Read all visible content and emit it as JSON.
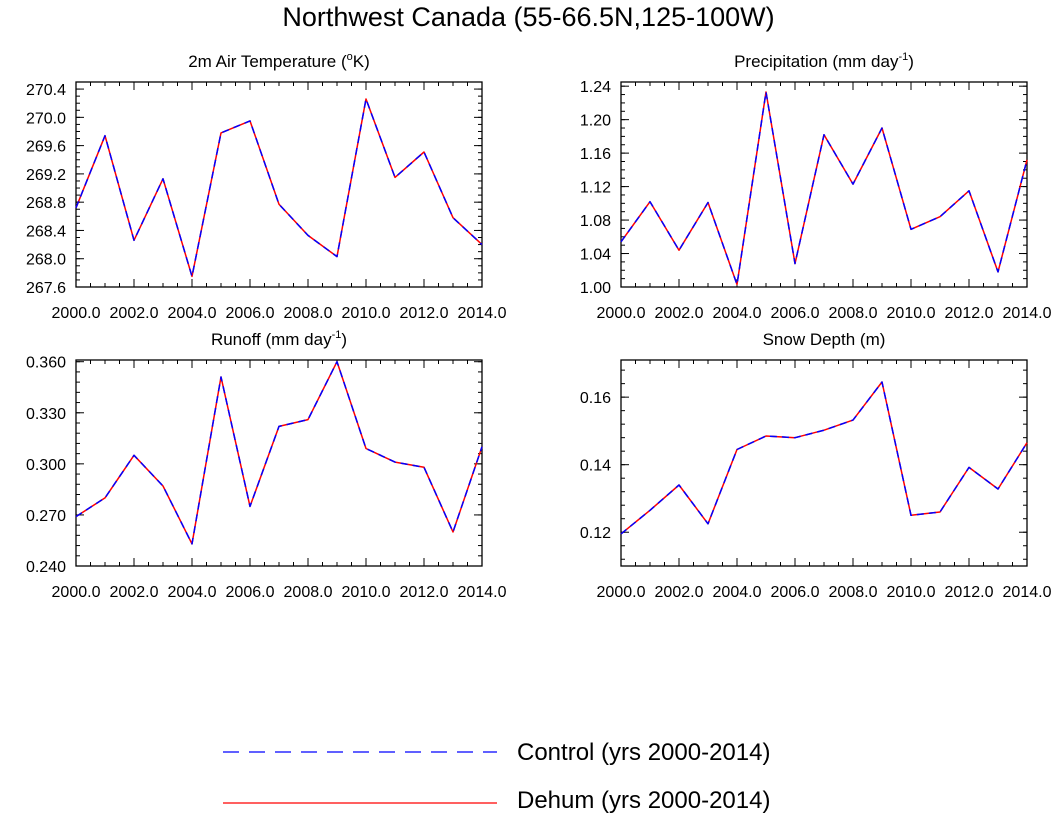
{
  "title": "Northwest Canada (55-66.5N,125-100W)",
  "legend": [
    {
      "label": "Control (yrs 2000-2014)",
      "color": "#0000ff",
      "style": "dashed"
    },
    {
      "label": "Dehum (yrs 2000-2014)",
      "color": "#ff0000",
      "style": "solid"
    }
  ],
  "chart_data": [
    {
      "type": "line",
      "title": "2m Air Temperature (oK)",
      "title_main": "2m Air Temperature (",
      "title_sup": "o",
      "title_after": "K)",
      "x": [
        2000,
        2001,
        2002,
        2003,
        2004,
        2005,
        2006,
        2007,
        2008,
        2009,
        2010,
        2011,
        2012,
        2013,
        2014
      ],
      "xlim": [
        2000,
        2014
      ],
      "xticks": [
        2000,
        2002,
        2004,
        2006,
        2008,
        2010,
        2012,
        2014
      ],
      "xtick_labels": [
        "2000.0",
        "2002.0",
        "2004.0",
        "2006.0",
        "2008.0",
        "2010.0",
        "2012.0",
        "2014.0"
      ],
      "ylim": [
        267.6,
        270.5
      ],
      "yticks": [
        267.6,
        268.0,
        268.4,
        268.8,
        269.2,
        269.6,
        270.0,
        270.4
      ],
      "ytick_labels": [
        "267.6",
        "268.0",
        "268.4",
        "268.8",
        "269.2",
        "269.6",
        "270.0",
        "270.4"
      ],
      "yminor": 0.1,
      "series": [
        {
          "name": "Control (yrs 2000-2014)",
          "color": "#0000ff",
          "style": "dashed",
          "values": [
            268.72,
            269.74,
            268.26,
            269.13,
            267.75,
            269.78,
            269.95,
            268.77,
            268.33,
            268.03,
            270.26,
            269.15,
            269.51,
            268.58,
            268.2
          ]
        },
        {
          "name": "Dehum (yrs 2000-2014)",
          "color": "#ff0000",
          "style": "solid",
          "values": [
            268.72,
            269.74,
            268.26,
            269.13,
            267.75,
            269.78,
            269.95,
            268.77,
            268.33,
            268.03,
            270.26,
            269.15,
            269.51,
            268.58,
            268.2
          ]
        }
      ]
    },
    {
      "type": "line",
      "title": "Precipitation (mm day-1)",
      "title_main": "Precipitation (mm day",
      "title_sup": "-1",
      "title_after": ")",
      "x": [
        2000,
        2001,
        2002,
        2003,
        2004,
        2005,
        2006,
        2007,
        2008,
        2009,
        2010,
        2011,
        2012,
        2013,
        2014
      ],
      "xlim": [
        2000,
        2014
      ],
      "xticks": [
        2000,
        2002,
        2004,
        2006,
        2008,
        2010,
        2012,
        2014
      ],
      "xtick_labels": [
        "2000.0",
        "2002.0",
        "2004.0",
        "2006.0",
        "2008.0",
        "2010.0",
        "2012.0",
        "2014.0"
      ],
      "ylim": [
        1.0,
        1.245
      ],
      "yticks": [
        1.0,
        1.04,
        1.08,
        1.12,
        1.16,
        1.2,
        1.24
      ],
      "ytick_labels": [
        "1.00",
        "1.04",
        "1.08",
        "1.12",
        "1.16",
        "1.20",
        "1.24"
      ],
      "yminor": 0.01,
      "series": [
        {
          "name": "Control (yrs 2000-2014)",
          "color": "#0000ff",
          "style": "dashed",
          "values": [
            1.054,
            1.102,
            1.044,
            1.101,
            1.003,
            1.233,
            1.028,
            1.182,
            1.123,
            1.19,
            1.069,
            1.084,
            1.115,
            1.018,
            1.152
          ]
        },
        {
          "name": "Dehum (yrs 2000-2014)",
          "color": "#ff0000",
          "style": "solid",
          "values": [
            1.054,
            1.102,
            1.044,
            1.101,
            1.003,
            1.233,
            1.028,
            1.182,
            1.123,
            1.19,
            1.069,
            1.084,
            1.115,
            1.018,
            1.152
          ]
        }
      ]
    },
    {
      "type": "line",
      "title": "Runoff (mm day-1)",
      "title_main": "Runoff (mm day",
      "title_sup": "-1",
      "title_after": ")",
      "x": [
        2000,
        2001,
        2002,
        2003,
        2004,
        2005,
        2006,
        2007,
        2008,
        2009,
        2010,
        2011,
        2012,
        2013,
        2014
      ],
      "xlim": [
        2000,
        2014
      ],
      "xticks": [
        2000,
        2002,
        2004,
        2006,
        2008,
        2010,
        2012,
        2014
      ],
      "xtick_labels": [
        "2000.0",
        "2002.0",
        "2004.0",
        "2006.0",
        "2008.0",
        "2010.0",
        "2012.0",
        "2014.0"
      ],
      "ylim": [
        0.24,
        0.361
      ],
      "yticks": [
        0.24,
        0.27,
        0.3,
        0.33,
        0.36
      ],
      "ytick_labels": [
        "0.240",
        "0.270",
        "0.300",
        "0.330",
        "0.360"
      ],
      "yminor": 0.006,
      "series": [
        {
          "name": "Control (yrs 2000-2014)",
          "color": "#0000ff",
          "style": "dashed",
          "values": [
            0.269,
            0.28,
            0.305,
            0.287,
            0.253,
            0.351,
            0.275,
            0.322,
            0.326,
            0.36,
            0.309,
            0.301,
            0.298,
            0.26,
            0.31
          ]
        },
        {
          "name": "Dehum (yrs 2000-2014)",
          "color": "#ff0000",
          "style": "solid",
          "values": [
            0.269,
            0.28,
            0.305,
            0.287,
            0.253,
            0.351,
            0.275,
            0.322,
            0.326,
            0.36,
            0.309,
            0.301,
            0.298,
            0.26,
            0.31
          ]
        }
      ]
    },
    {
      "type": "line",
      "title": "Snow Depth (m)",
      "title_main": "Snow Depth (m)",
      "title_sup": "",
      "title_after": "",
      "x": [
        2000,
        2001,
        2002,
        2003,
        2004,
        2005,
        2006,
        2007,
        2008,
        2009,
        2010,
        2011,
        2012,
        2013,
        2014
      ],
      "xlim": [
        2000,
        2014
      ],
      "xticks": [
        2000,
        2002,
        2004,
        2006,
        2008,
        2010,
        2012,
        2014
      ],
      "xtick_labels": [
        "2000.0",
        "2002.0",
        "2004.0",
        "2006.0",
        "2008.0",
        "2010.0",
        "2012.0",
        "2014.0"
      ],
      "ylim": [
        0.11,
        0.171
      ],
      "yticks": [
        0.12,
        0.14,
        0.16
      ],
      "ytick_labels": [
        "0.12",
        "0.14",
        "0.16"
      ],
      "yminor": 0.004,
      "series": [
        {
          "name": "Control (yrs 2000-2014)",
          "color": "#0000ff",
          "style": "dashed",
          "values": [
            0.1195,
            0.1265,
            0.134,
            0.1225,
            0.1445,
            0.1485,
            0.148,
            0.1502,
            0.1532,
            0.1645,
            0.125,
            0.126,
            0.1392,
            0.1328,
            0.1465
          ]
        },
        {
          "name": "Dehum (yrs 2000-2014)",
          "color": "#ff0000",
          "style": "solid",
          "values": [
            0.1195,
            0.1265,
            0.134,
            0.1225,
            0.1445,
            0.1485,
            0.148,
            0.1502,
            0.1532,
            0.1645,
            0.125,
            0.126,
            0.1392,
            0.1328,
            0.1465
          ]
        }
      ]
    }
  ]
}
